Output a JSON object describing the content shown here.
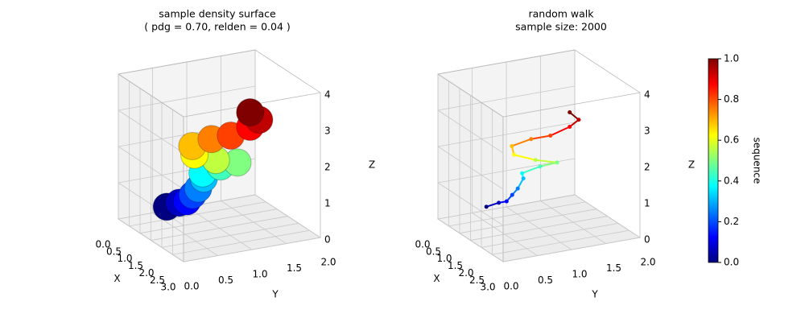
{
  "chart_data": [
    {
      "type": "surface",
      "title": "sample density surface",
      "subtitle": "( pdg = 0.70, relden = 0.04 )",
      "xlabel": "X",
      "ylabel": "Y",
      "zlabel": "Z",
      "xlim": [
        0,
        3
      ],
      "ylim": [
        0,
        2
      ],
      "zlim": [
        0,
        4
      ],
      "xticks": [
        {
          "value": 0,
          "label": "0.0"
        },
        {
          "value": 0.5,
          "label": "0.5"
        },
        {
          "value": 1,
          "label": "1.0"
        },
        {
          "value": 1.5,
          "label": "1.5"
        },
        {
          "value": 2,
          "label": "2.0"
        },
        {
          "value": 2.5,
          "label": "2.5"
        },
        {
          "value": 3,
          "label": "3.0"
        }
      ],
      "yticks": [
        {
          "value": 0,
          "label": "0.0"
        },
        {
          "value": 0.5,
          "label": "0.5"
        },
        {
          "value": 1,
          "label": "1.0"
        },
        {
          "value": 1.5,
          "label": "1.5"
        },
        {
          "value": 2,
          "label": "2.0"
        }
      ],
      "zticks": [
        0,
        1,
        2,
        3,
        4
      ],
      "grid": true,
      "colormap": "jet",
      "x": [
        1.6,
        1.7,
        1.9,
        2.0,
        2.1,
        2.2,
        2.3,
        2.5,
        2.65,
        2.6,
        2.4,
        2.3,
        2.4,
        2.5,
        2.6,
        2.7,
        2.6
      ],
      "y": [
        0.2,
        0.35,
        0.4,
        0.45,
        0.5,
        0.55,
        0.5,
        0.7,
        0.9,
        0.6,
        0.35,
        0.35,
        0.6,
        0.85,
        1.1,
        1.2,
        1.1
      ],
      "z": [
        0.9,
        1.0,
        1.1,
        1.3,
        1.5,
        1.8,
        2.0,
        2.2,
        2.3,
        2.45,
        2.6,
        2.8,
        2.95,
        3.0,
        3.2,
        3.4,
        3.6
      ]
    },
    {
      "type": "line3d",
      "title": "random walk",
      "subtitle": "sample size: 2000",
      "xlabel": "X",
      "ylabel": "Y",
      "zlabel": "Z",
      "xlim": [
        0,
        3
      ],
      "ylim": [
        0,
        2
      ],
      "zlim": [
        0,
        4
      ],
      "xticks": [
        {
          "value": 0,
          "label": "0.0"
        },
        {
          "value": 0.5,
          "label": "0.5"
        },
        {
          "value": 1,
          "label": "1.0"
        },
        {
          "value": 1.5,
          "label": "1.5"
        },
        {
          "value": 2,
          "label": "2.0"
        },
        {
          "value": 2.5,
          "label": "2.5"
        },
        {
          "value": 3,
          "label": "3.0"
        }
      ],
      "yticks": [
        {
          "value": 0,
          "label": "0.0"
        },
        {
          "value": 0.5,
          "label": "0.5"
        },
        {
          "value": 1,
          "label": "1.0"
        },
        {
          "value": 1.5,
          "label": "1.5"
        },
        {
          "value": 2,
          "label": "2.0"
        }
      ],
      "zticks": [
        0,
        1,
        2,
        3,
        4
      ],
      "grid": true,
      "colormap": "jet",
      "x": [
        1.6,
        1.7,
        1.9,
        2.0,
        2.1,
        2.2,
        2.3,
        2.5,
        2.65,
        2.6,
        2.4,
        2.3,
        2.4,
        2.5,
        2.6,
        2.7,
        2.6
      ],
      "y": [
        0.2,
        0.35,
        0.4,
        0.45,
        0.5,
        0.55,
        0.5,
        0.7,
        0.9,
        0.6,
        0.35,
        0.35,
        0.6,
        0.85,
        1.1,
        1.2,
        1.1
      ],
      "z": [
        0.9,
        1.0,
        1.1,
        1.3,
        1.5,
        1.8,
        2.0,
        2.2,
        2.3,
        2.45,
        2.6,
        2.8,
        2.95,
        3.0,
        3.2,
        3.4,
        3.6
      ],
      "colorbar": {
        "label": "sequence",
        "lim": [
          0,
          1
        ],
        "ticks": [
          {
            "value": 0,
            "label": "0.0"
          },
          {
            "value": 0.2,
            "label": "0.2"
          },
          {
            "value": 0.4,
            "label": "0.4"
          },
          {
            "value": 0.6,
            "label": "0.6"
          },
          {
            "value": 0.8,
            "label": "0.8"
          },
          {
            "value": 1,
            "label": "1.0"
          }
        ]
      }
    }
  ]
}
